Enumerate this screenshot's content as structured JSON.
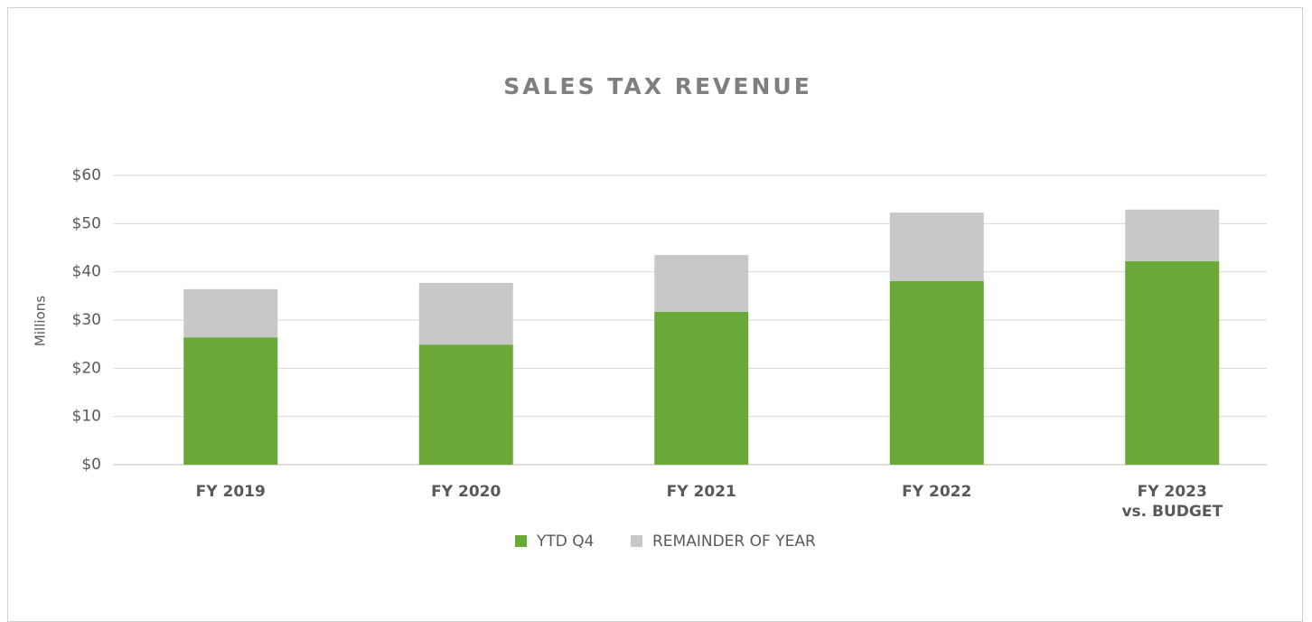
{
  "chart_data": {
    "type": "stacked_bar",
    "title": "SALES TAX REVENUE",
    "y_label": "Millions",
    "categories": [
      "FY 2019",
      "FY 2020",
      "FY 2021",
      "FY 2022",
      "FY 2023\nvs. BUDGET"
    ],
    "series": [
      {
        "name": "YTD Q4",
        "color": "#6aa838",
        "values": [
          26.4,
          24.9,
          31.7,
          38.1,
          42.2
        ]
      },
      {
        "name": "REMAINDER OF YEAR",
        "color": "#c8c8c8",
        "values": [
          10.0,
          12.8,
          11.8,
          14.2,
          10.7
        ]
      }
    ],
    "ylim": [
      0,
      60
    ],
    "yticks": [
      {
        "value": 0,
        "label": "$0"
      },
      {
        "value": 10,
        "label": "$10"
      },
      {
        "value": 20,
        "label": "$20"
      },
      {
        "value": 30,
        "label": "$30"
      },
      {
        "value": 40,
        "label": "$40"
      },
      {
        "value": 50,
        "label": "$50"
      },
      {
        "value": 60,
        "label": "$60"
      }
    ],
    "grid": true,
    "legend": "bottom"
  }
}
